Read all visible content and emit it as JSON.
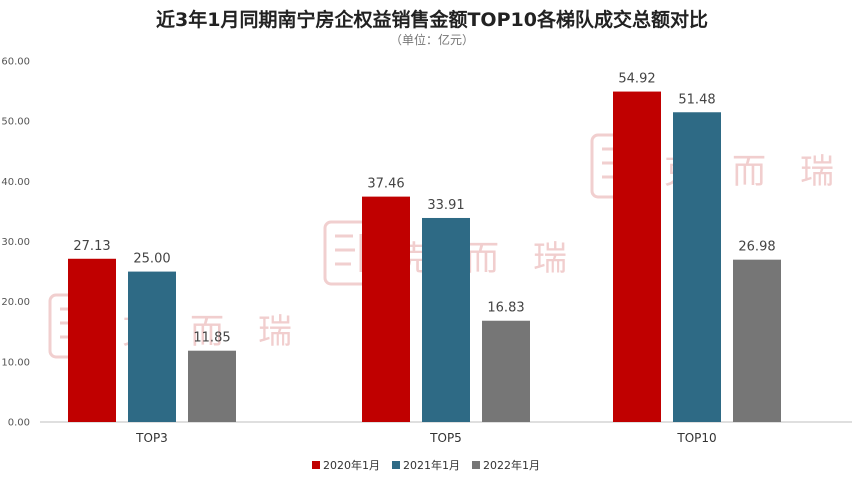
{
  "chart_data": {
    "type": "bar",
    "title": "近3年1月同期南宁房企权益销售金额TOP10各梯队成交总额对比",
    "subtitle": "（单位：亿元）",
    "categories": [
      "TOP3",
      "TOP5",
      "TOP10"
    ],
    "series": [
      {
        "name": "2020年1月",
        "values": [
          27.13,
          37.46,
          54.92
        ],
        "color": "#c00000"
      },
      {
        "name": "2021年1月",
        "values": [
          25.0,
          33.91,
          51.48
        ],
        "color": "#2e6a85"
      },
      {
        "name": "2022年1月",
        "values": [
          11.85,
          16.83,
          26.98
        ],
        "color": "#767676"
      }
    ],
    "ylim": [
      0,
      60
    ],
    "yticks": [
      "0.00",
      "10.00",
      "20.00",
      "30.00",
      "40.00",
      "50.00",
      "60.00"
    ],
    "grid": false,
    "legend": "bottom",
    "watermark": "克而瑞"
  }
}
